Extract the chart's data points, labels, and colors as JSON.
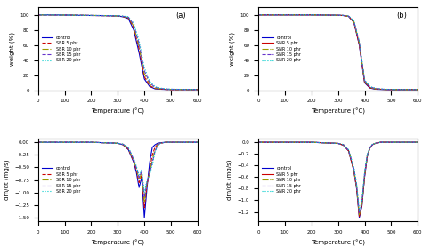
{
  "temp": [
    0,
    50,
    100,
    150,
    200,
    250,
    300,
    320,
    340,
    360,
    380,
    400,
    420,
    440,
    460,
    480,
    500,
    550,
    600
  ],
  "tga_control_a": [
    100,
    100,
    99.8,
    99.5,
    99.2,
    99.0,
    98.5,
    97.5,
    95,
    80,
    50,
    15,
    5,
    2,
    1.5,
    1.2,
    1.0,
    1.0,
    1.0
  ],
  "tga_sbr5_a": [
    100,
    100,
    99.8,
    99.5,
    99.2,
    99.0,
    98.5,
    97.8,
    96,
    83,
    55,
    18,
    6,
    2.5,
    1.8,
    1.3,
    1.0,
    1.0,
    1.0
  ],
  "tga_sbr10_a": [
    100,
    100,
    99.8,
    99.5,
    99.3,
    99.1,
    98.6,
    98.0,
    96.5,
    85,
    58,
    22,
    8,
    3,
    2,
    1.5,
    1.2,
    1.1,
    1.0
  ],
  "tga_sbr15_a": [
    100,
    100,
    99.8,
    99.5,
    99.3,
    99.1,
    98.7,
    98.2,
    97,
    87,
    62,
    26,
    10,
    4,
    2.5,
    1.8,
    1.5,
    1.2,
    1.1
  ],
  "tga_sbr20_a": [
    100,
    100,
    99.8,
    99.5,
    99.3,
    99.1,
    98.8,
    98.4,
    97.5,
    89,
    66,
    30,
    12,
    5,
    3,
    2,
    1.6,
    1.3,
    1.2
  ],
  "tga_control_b": [
    100,
    100,
    100,
    100,
    100,
    99.8,
    99.5,
    99.2,
    98,
    90,
    60,
    10,
    3,
    1.5,
    1.2,
    1.0,
    1.0,
    1.0,
    1.0
  ],
  "tga_snr5_b": [
    100,
    100,
    100,
    100,
    100,
    99.8,
    99.5,
    99.2,
    98,
    90,
    61,
    11,
    3.5,
    2,
    1.5,
    1.2,
    1.0,
    1.0,
    1.0
  ],
  "tga_snr10_b": [
    100,
    100,
    100,
    100,
    100,
    99.8,
    99.5,
    99.3,
    98.2,
    91,
    63,
    12,
    4,
    2,
    1.5,
    1.2,
    1.0,
    1.0,
    1.0
  ],
  "tga_snr15_b": [
    100,
    100,
    100,
    100,
    100,
    99.8,
    99.6,
    99.3,
    98.3,
    91.5,
    64,
    13,
    4.5,
    2.5,
    1.8,
    1.3,
    1.0,
    1.0,
    1.0
  ],
  "tga_snr20_b": [
    100,
    100,
    100,
    100,
    100,
    99.8,
    99.6,
    99.4,
    98.5,
    92,
    65,
    14,
    5,
    3,
    2,
    1.5,
    1.2,
    1.0,
    1.0
  ],
  "dtg_temp": [
    0,
    50,
    100,
    150,
    200,
    250,
    300,
    320,
    340,
    360,
    370,
    380,
    390,
    400,
    410,
    420,
    430,
    440,
    450,
    460,
    480,
    500,
    550,
    600
  ],
  "dtg_control_a": [
    0,
    0,
    0,
    0,
    0,
    -0.01,
    -0.02,
    -0.05,
    -0.15,
    -0.4,
    -0.6,
    -0.9,
    -0.7,
    -1.5,
    -0.9,
    -0.4,
    -0.1,
    -0.05,
    -0.02,
    -0.01,
    0,
    0,
    0,
    0
  ],
  "dtg_sbr5_a": [
    0,
    0,
    0,
    0,
    0,
    -0.01,
    -0.02,
    -0.05,
    -0.14,
    -0.38,
    -0.55,
    -0.8,
    -0.65,
    -1.3,
    -0.85,
    -0.55,
    -0.25,
    -0.1,
    -0.04,
    -0.02,
    0,
    0,
    0,
    0
  ],
  "dtg_sbr10_a": [
    0,
    0,
    0,
    0,
    0,
    -0.01,
    -0.02,
    -0.04,
    -0.13,
    -0.36,
    -0.52,
    -0.75,
    -0.6,
    -1.2,
    -0.8,
    -0.6,
    -0.35,
    -0.15,
    -0.05,
    -0.02,
    0,
    0,
    0,
    0
  ],
  "dtg_sbr15_a": [
    0,
    0,
    0,
    0,
    0,
    -0.01,
    -0.02,
    -0.04,
    -0.12,
    -0.34,
    -0.5,
    -0.7,
    -0.58,
    -1.1,
    -0.78,
    -0.62,
    -0.4,
    -0.18,
    -0.06,
    -0.02,
    0,
    0,
    0,
    0
  ],
  "dtg_sbr20_a": [
    0,
    0,
    0,
    0,
    0,
    -0.01,
    -0.02,
    -0.04,
    -0.11,
    -0.32,
    -0.48,
    -0.65,
    -0.55,
    -1.0,
    -0.75,
    -0.65,
    -0.45,
    -0.2,
    -0.07,
    -0.02,
    0,
    0,
    0,
    0
  ],
  "dtg_control_b": [
    0,
    0,
    0,
    0,
    0,
    -0.01,
    -0.02,
    -0.05,
    -0.15,
    -0.5,
    -0.8,
    -1.3,
    -1.1,
    -0.6,
    -0.25,
    -0.1,
    -0.04,
    -0.02,
    -0.01,
    0,
    0,
    0,
    0,
    0
  ],
  "dtg_snr5_b": [
    0,
    0,
    0,
    0,
    0,
    -0.01,
    -0.02,
    -0.05,
    -0.15,
    -0.5,
    -0.79,
    -1.28,
    -1.08,
    -0.58,
    -0.24,
    -0.1,
    -0.04,
    -0.02,
    -0.01,
    0,
    0,
    0,
    0,
    0
  ],
  "dtg_snr10_b": [
    0,
    0,
    0,
    0,
    0,
    -0.01,
    -0.02,
    -0.04,
    -0.14,
    -0.48,
    -0.77,
    -1.25,
    -1.06,
    -0.56,
    -0.23,
    -0.1,
    -0.04,
    -0.02,
    -0.01,
    0,
    0,
    0,
    0,
    0
  ],
  "dtg_snr15_b": [
    0,
    0,
    0,
    0,
    0,
    -0.01,
    -0.02,
    -0.04,
    -0.14,
    -0.46,
    -0.75,
    -1.22,
    -1.04,
    -0.54,
    -0.22,
    -0.09,
    -0.04,
    -0.02,
    -0.01,
    0,
    0,
    0,
    0,
    0
  ],
  "dtg_snr20_b": [
    0,
    0,
    0,
    0,
    0,
    -0.01,
    -0.02,
    -0.04,
    -0.13,
    -0.44,
    -0.72,
    -1.18,
    -1.01,
    -0.52,
    -0.21,
    -0.09,
    -0.03,
    -0.02,
    -0.01,
    0,
    0,
    0,
    0,
    0
  ],
  "colors": {
    "control": "#0000CD",
    "5phr": "#CC0000",
    "10phr": "#999900",
    "15phr": "#6633CC",
    "20phr": "#00CCCC"
  },
  "legend_a_tga": [
    "control",
    "SBR 5 phr",
    "SBR 10 phr",
    "SBR 15 phr",
    "SBR 20 phr"
  ],
  "legend_b_tga": [
    "control",
    "SNR 5 phr",
    "SNR 10 phr",
    "SNR 15 phr",
    "SNR 20 phr"
  ],
  "legend_a_dtg": [
    "control",
    "SBR 5 phr",
    "SBR 10 phr",
    "SBR 15 phr",
    "SBR 20 phr"
  ],
  "legend_b_dtg": [
    "control",
    "SNR 5 phr",
    "SNR 10 phr",
    "SNR 15 phr",
    "SNR 20 phr"
  ],
  "xlabel": "Temperature (°C)",
  "ylabel_tga": "weight (%)",
  "ylabel_dtg": "dm/dt (mg/s)",
  "xlim": [
    0,
    600
  ],
  "ylim_tga": [
    0,
    110
  ],
  "label_a": "(a)",
  "label_b": "(b)"
}
